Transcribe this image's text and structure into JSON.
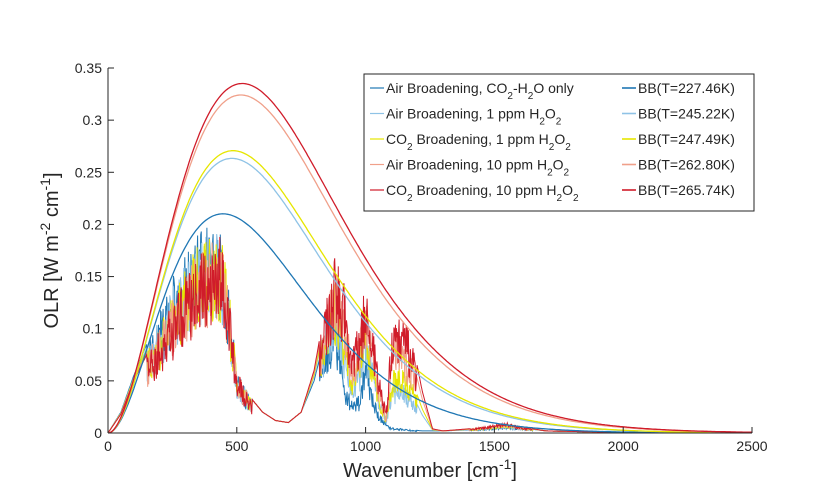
{
  "chart_data": {
    "type": "line",
    "title": "",
    "xlabel": "Wavenumber [cm^-1]",
    "ylabel": "OLR [W m^-2 cm^-1]",
    "xlim": [
      0,
      2500
    ],
    "ylim": [
      0,
      0.35
    ],
    "xticks": [
      0,
      500,
      1000,
      1500,
      2000,
      2500
    ],
    "yticks": [
      0,
      0.05,
      0.1,
      0.15,
      0.2,
      0.25,
      0.3,
      0.35
    ],
    "legend_position": "top-right",
    "spectral_series": [
      {
        "name": "Air Broadening, CO2-H2O only",
        "label_parts": [
          [
            "Air Broadening, CO"
          ],
          [
            "2",
            "sub"
          ],
          [
            "-H"
          ],
          [
            "2",
            "sub"
          ],
          [
            "O only"
          ]
        ],
        "color": "#1f77b4"
      },
      {
        "name": "Air Broadening, 1 ppm H2O2",
        "label_parts": [
          [
            "Air Broadening, 1 ppm H"
          ],
          [
            "2",
            "sub"
          ],
          [
            "O"
          ],
          [
            "2",
            "sub"
          ]
        ],
        "color": "#8fc3e6"
      },
      {
        "name": "CO2 Broadening, 1 ppm H2O2",
        "label_parts": [
          [
            "CO"
          ],
          [
            "2",
            "sub"
          ],
          [
            " Broadening, 1 ppm H"
          ],
          [
            "2",
            "sub"
          ],
          [
            "O"
          ],
          [
            "2",
            "sub"
          ]
        ],
        "color": "#e6e600"
      },
      {
        "name": "Air Broadening, 10 ppm H2O2",
        "label_parts": [
          [
            "Air Broadening, 10 ppm H"
          ],
          [
            "2",
            "sub"
          ],
          [
            "O"
          ],
          [
            "2",
            "sub"
          ]
        ],
        "color": "#f0a08a"
      },
      {
        "name": "CO2 Broadening, 10 ppm H2O2",
        "label_parts": [
          [
            "CO"
          ],
          [
            "2",
            "sub"
          ],
          [
            " Broadening, 10 ppm H"
          ],
          [
            "2",
            "sub"
          ],
          [
            "O"
          ],
          [
            "2",
            "sub"
          ]
        ],
        "color": "#d01c2a"
      }
    ],
    "spectral_envelope": {
      "x": [
        0,
        50,
        100,
        150,
        200,
        250,
        300,
        350,
        400,
        440,
        470,
        500,
        550,
        600,
        650,
        700,
        750,
        800,
        850,
        880,
        900,
        920,
        950,
        980,
        1000,
        1020,
        1050,
        1080,
        1100,
        1120,
        1150,
        1180,
        1220,
        1260,
        1300,
        1400,
        1500,
        1550,
        1600,
        1700,
        2000,
        2500
      ],
      "air_co2_h2o_only": [
        0,
        0.02,
        0.055,
        0.085,
        0.115,
        0.15,
        0.175,
        0.195,
        0.2,
        0.19,
        0.14,
        0.06,
        0.035,
        0.02,
        0.012,
        0.01,
        0.02,
        0.05,
        0.1,
        0.12,
        0.09,
        0.05,
        0.03,
        0.04,
        0.08,
        0.05,
        0.02,
        0.01,
        0.005,
        0.005,
        0.004,
        0.003,
        0.002,
        0.002,
        0.002,
        0.003,
        0.005,
        0.006,
        0.005,
        0.002,
        0.0005,
        0
      ],
      "co2_10ppm_h2o2": [
        0,
        0.018,
        0.05,
        0.075,
        0.1,
        0.125,
        0.15,
        0.17,
        0.18,
        0.19,
        0.14,
        0.06,
        0.035,
        0.02,
        0.012,
        0.01,
        0.02,
        0.06,
        0.13,
        0.17,
        0.16,
        0.14,
        0.08,
        0.12,
        0.15,
        0.12,
        0.06,
        0.02,
        0.1,
        0.12,
        0.11,
        0.09,
        0.04,
        0.004,
        0.002,
        0.004,
        0.008,
        0.01,
        0.006,
        0.002,
        0.0005,
        0
      ]
    },
    "blackbody_series": [
      {
        "name": "BB(T=227.46K)",
        "temperature_K": 227.46,
        "color": "#1f77b4"
      },
      {
        "name": "BB(T=245.22K)",
        "temperature_K": 245.22,
        "color": "#8fc3e6"
      },
      {
        "name": "BB(T=247.49K)",
        "temperature_K": 247.49,
        "color": "#e6e600"
      },
      {
        "name": "BB(T=262.80K)",
        "temperature_K": 262.8,
        "color": "#f0a08a"
      },
      {
        "name": "BB(T=265.74K)",
        "temperature_K": 265.74,
        "color": "#d01c2a"
      }
    ]
  }
}
